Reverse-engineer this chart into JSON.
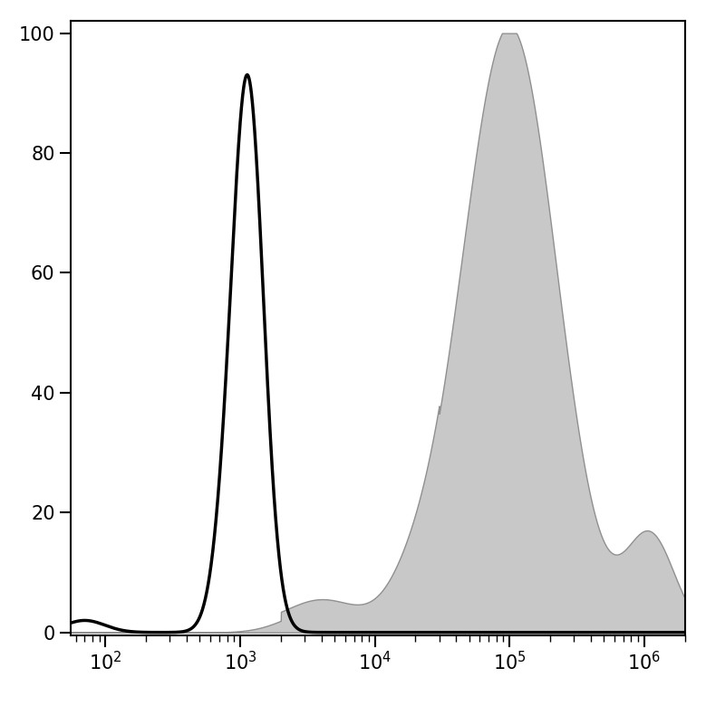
{
  "xlim": [
    55,
    2000000
  ],
  "ylim": [
    -0.5,
    102
  ],
  "yticks": [
    0,
    20,
    40,
    60,
    80,
    100
  ],
  "background_color": "#ffffff",
  "black_hist_color": "#000000",
  "black_hist_linewidth": 2.5,
  "gray_hist_facecolor": "#c8c8c8",
  "gray_hist_edgecolor": "#909090",
  "gray_hist_linewidth": 1.0,
  "figsize": [
    7.79,
    7.8
  ],
  "dpi": 100
}
